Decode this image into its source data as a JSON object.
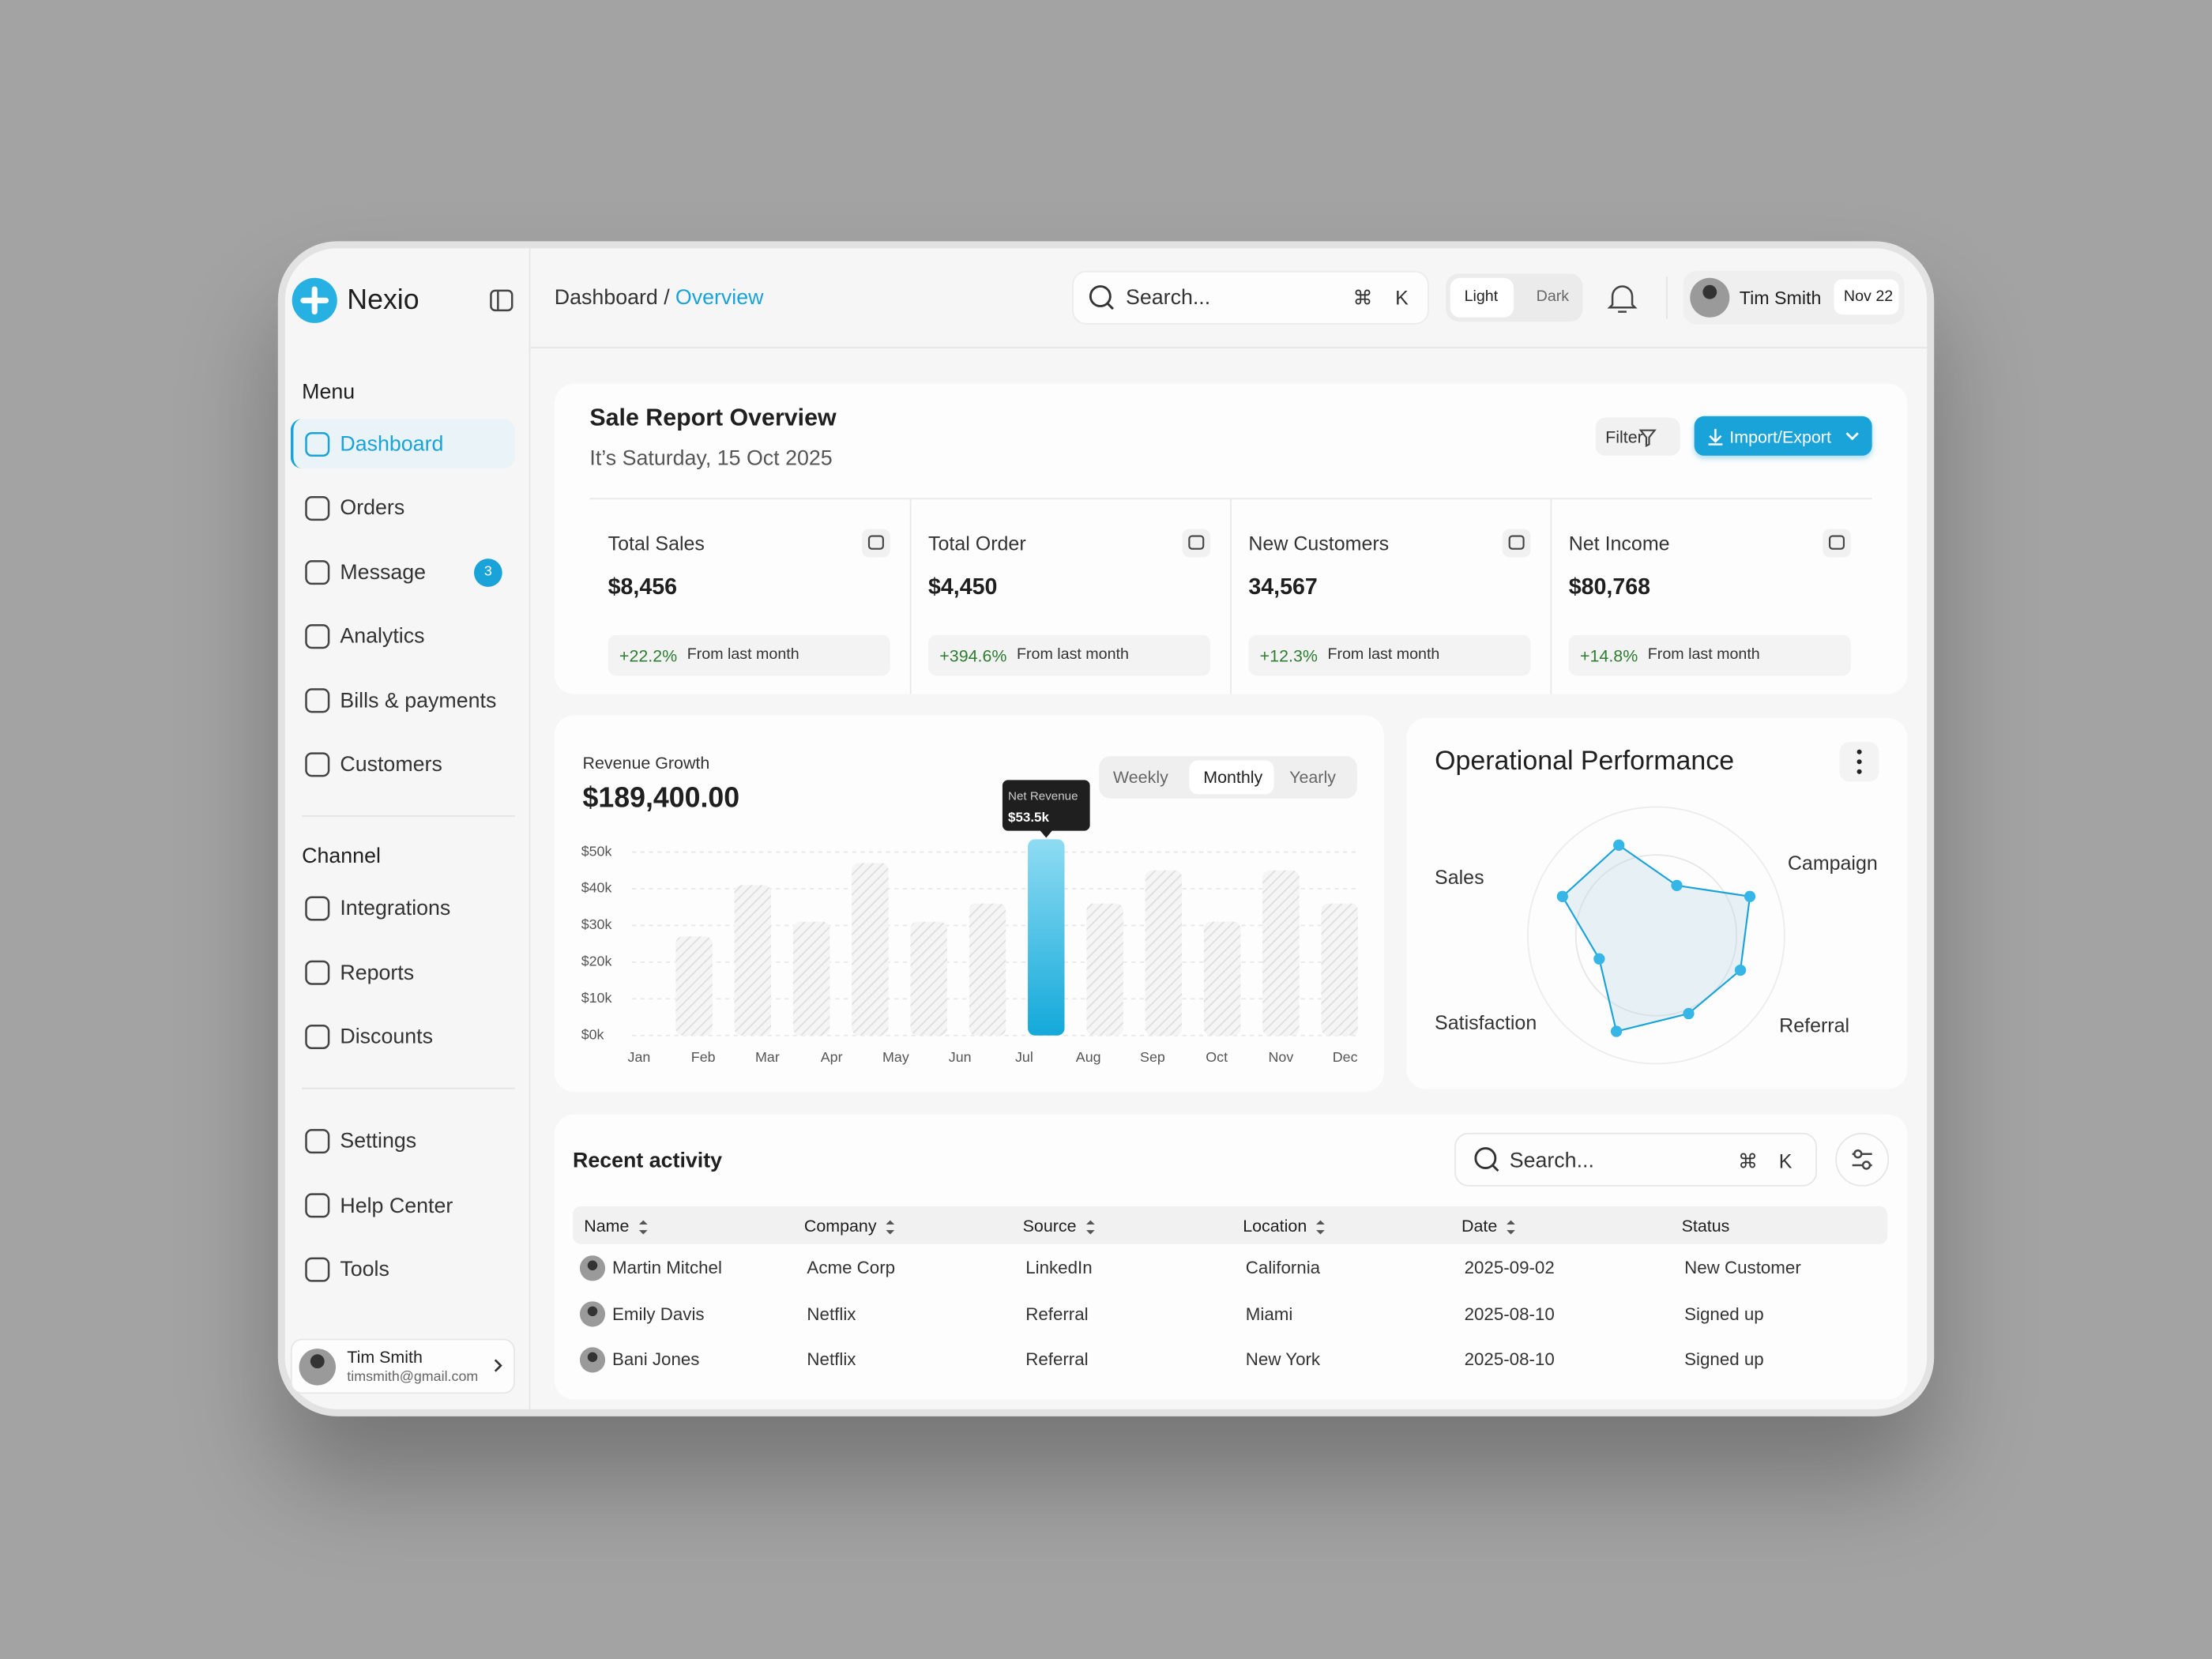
{
  "brand": "Nexio",
  "sidebar": {
    "menu_title": "Menu",
    "menu": [
      {
        "label": "Dashboard"
      },
      {
        "label": "Orders"
      },
      {
        "label": "Message",
        "badge": 3
      },
      {
        "label": "Analytics"
      },
      {
        "label": "Bills & payments"
      },
      {
        "label": "Customers"
      }
    ],
    "channel_title": "Channel",
    "channel": [
      "Integrations",
      "Reports",
      "Discounts"
    ],
    "bottom": [
      "Settings",
      "Help Center",
      "Tools"
    ],
    "user": {
      "name": "Tim Smith",
      "email": "timsmith@gmail.com"
    }
  },
  "header": {
    "breadcrumb": "Dashboard /",
    "current": "Overview",
    "search": "Search...",
    "shortcut": [
      "⌘",
      "K"
    ],
    "themes": [
      "Light",
      "Dark"
    ],
    "user": "Tim Smith",
    "date": "Nov 22"
  },
  "report": {
    "title": "Sale Report Overview",
    "date": "It’s Saturday, 15 Oct 2025",
    "filter": "Filter",
    "export": "Import/Export",
    "stats": [
      {
        "label": "Total Sales",
        "value": "$8,456",
        "change": "+22.2%",
        "note": "From last month"
      },
      {
        "label": "Total Order",
        "value": "$4,450",
        "change": "+394.6%",
        "note": "From last month"
      },
      {
        "label": "New Customers",
        "value": "34,567",
        "change": "+12.3%",
        "note": "From last month"
      },
      {
        "label": "Net Income",
        "value": "$80,768",
        "change": "+14.8%",
        "note": "From last month"
      }
    ]
  },
  "revenue": {
    "type": "bar",
    "label": "Revenue Growth",
    "total": "$189,400.00",
    "tabs": [
      "Weekly",
      "Monthly",
      "Yearly"
    ],
    "tooltip": "Net Revenue",
    "categories": [
      "Jan",
      "Feb",
      "Mar",
      "Apr",
      "May",
      "Jun",
      "Jul",
      "Aug",
      "Sep",
      "Oct",
      "Nov",
      "Dec"
    ],
    "values": [
      27000,
      41000,
      31000,
      47000,
      31000,
      36000,
      53500,
      36000,
      45000,
      31000,
      45000,
      36000
    ],
    "value_labels": [
      null,
      null,
      null,
      null,
      null,
      null,
      "$53.5k",
      null,
      null,
      null,
      null,
      null
    ],
    "ylim": [
      0,
      55000
    ],
    "yticks": [
      {
        "value": 0,
        "label": "$0k"
      },
      {
        "value": 10000,
        "label": "$10k"
      },
      {
        "value": 20000,
        "label": "$20k"
      },
      {
        "value": 30000,
        "label": "$30k"
      },
      {
        "value": 40000,
        "label": "$40k"
      },
      {
        "value": 50000,
        "label": "$50k"
      }
    ],
    "grid": true,
    "color": "#13a9da"
  },
  "performance": {
    "type": "radar",
    "title": "Operational Performance",
    "labels": [
      "Sales",
      "Campaign",
      "Referral",
      "Satisfaction"
    ],
    "values": [
      76,
      42,
      79,
      71,
      66,
      81,
      48,
      79
    ],
    "rlim": [
      0,
      100
    ],
    "color": "#1aa3d9"
  },
  "activity": {
    "title": "Recent activity",
    "search": "Search...",
    "shortcut": [
      "⌘",
      "K"
    ],
    "columns": [
      "Name",
      "Company",
      "Source",
      "Location",
      "Date",
      "Status"
    ],
    "rows": [
      [
        "Martin Mitchel",
        "Acme Corp",
        "LinkedIn",
        "California",
        "2025-09-02",
        "New Customer"
      ],
      [
        "Emily Davis",
        "Netflix",
        "Referral",
        "Miami",
        "2025-08-10",
        "Signed up"
      ],
      [
        "Bani Jones",
        "Netflix",
        "Referral",
        "New York",
        "2025-08-10",
        "Signed up"
      ]
    ]
  }
}
